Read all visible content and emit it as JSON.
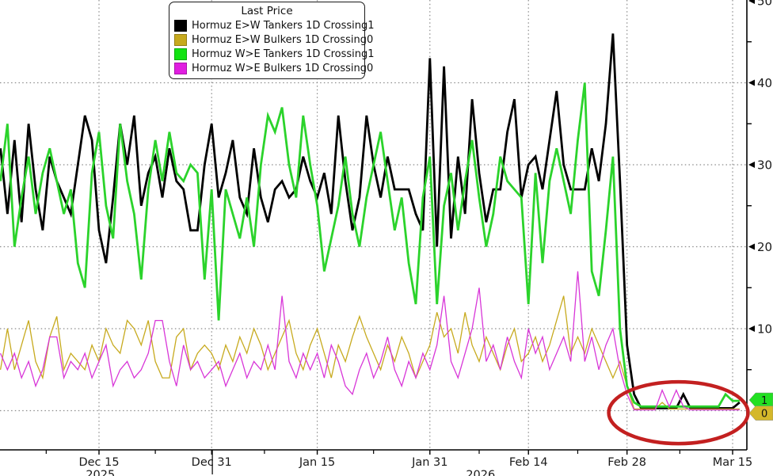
{
  "chart_data": {
    "type": "line",
    "x_start_label": "Dec 1 2025",
    "x_unit": "day",
    "legend_title": "Last Price",
    "ylim": [
      0,
      50
    ],
    "yticks": [
      10,
      20,
      30,
      40,
      50
    ],
    "yticks_minor": [
      5,
      15,
      25,
      35,
      45
    ],
    "grid": "dotted",
    "legend_position": "top-center",
    "xticks": [
      {
        "label": "Dec 15",
        "day": 14
      },
      {
        "label": "Dec 31",
        "day": 30
      },
      {
        "label": "Jan 15",
        "day": 45
      },
      {
        "label": "Jan 31",
        "day": 61
      },
      {
        "label": "Feb 14",
        "day": 75
      },
      {
        "label": "Feb 28",
        "day": 89
      },
      {
        "label": "Mar 15",
        "day": 104
      }
    ],
    "xticks_minor_days": [
      6.5,
      22,
      37.5,
      53,
      68,
      82,
      96.5
    ],
    "year_labels": [
      {
        "label": "2025",
        "day": 14.2
      },
      {
        "label": "2026",
        "day": 68.2
      }
    ],
    "year_divider_day": 30.1,
    "series": [
      {
        "name": "Hormuz E>W Tankers 1D Crossing",
        "last_value": "1",
        "color": "#000000",
        "width": 2.8,
        "values": [
          32,
          24,
          33,
          23,
          35,
          27,
          22,
          31,
          28,
          26,
          24,
          30,
          36,
          33,
          22,
          18,
          26,
          35,
          30,
          36,
          25,
          29,
          31,
          26,
          32,
          28,
          27,
          22,
          22,
          30,
          35,
          26,
          29,
          33,
          26,
          24,
          32,
          26,
          23,
          27,
          28,
          26,
          27,
          31,
          28,
          26,
          29,
          24,
          36,
          28,
          22,
          26,
          36,
          30,
          26,
          31,
          27,
          27,
          27,
          24,
          22,
          43,
          20,
          42,
          21,
          31,
          24,
          38,
          29,
          23,
          27,
          27,
          34,
          38,
          26,
          30,
          31,
          27,
          33,
          39,
          30,
          27,
          27,
          27,
          32,
          28,
          35,
          46,
          28,
          8,
          2,
          0.3,
          0.3,
          0.3,
          0.3,
          0.3,
          0.3,
          2,
          0.3,
          0.3,
          0.3,
          0.3,
          0.3,
          0.3,
          0.3,
          1
        ]
      },
      {
        "name": "Hormuz E>W Bulkers 1D Crossing",
        "last_value": "0",
        "color": "#c7aa1e",
        "width": 1.3,
        "values": [
          5,
          10,
          5,
          8,
          11,
          6,
          4,
          9,
          11.5,
          5,
          7,
          6,
          5,
          8,
          6,
          10,
          8,
          7,
          11,
          10,
          8,
          11,
          6,
          4,
          4,
          9,
          10,
          5,
          7,
          8,
          7,
          5,
          8,
          6,
          9,
          7,
          10,
          8,
          5,
          7,
          9,
          11,
          7,
          5,
          8,
          10,
          7,
          4,
          8,
          6,
          9,
          11.5,
          9,
          7,
          5,
          8,
          6,
          9,
          7,
          4,
          6,
          8,
          12,
          9,
          10,
          7,
          12,
          8,
          6,
          9,
          7,
          5,
          8,
          10,
          6,
          7,
          9,
          6,
          8,
          11,
          14,
          7,
          9,
          7,
          10,
          8,
          6,
          4,
          6,
          3,
          0.2,
          0.2,
          0.2,
          0.2,
          1,
          0.2,
          0.2,
          0.2,
          0.2,
          0.2,
          0.2,
          0.2,
          0.2,
          0.2,
          0.2,
          0.2
        ]
      },
      {
        "name": "Hormuz W>E Tankers 1D Crossing",
        "last_value": "1",
        "color": "#2bd32b",
        "width": 2.8,
        "values": [
          28,
          35,
          20,
          26,
          31,
          24,
          29,
          32,
          28,
          24,
          27,
          18,
          15,
          29,
          34,
          25,
          21,
          35,
          28,
          24,
          16,
          27,
          33,
          28,
          34,
          29,
          28,
          30,
          29,
          16,
          27,
          11,
          27,
          24,
          21,
          26,
          20,
          30,
          36,
          34,
          37,
          30,
          26,
          36,
          30,
          25,
          17,
          21,
          25,
          31,
          24,
          20,
          26,
          30,
          34,
          28,
          22,
          26,
          18,
          13,
          26,
          31,
          13,
          25,
          29,
          22,
          28,
          33,
          26,
          20,
          24,
          31,
          28,
          27,
          26,
          13,
          29,
          18,
          28,
          32,
          28,
          24,
          33,
          40,
          17,
          14,
          22,
          31,
          10,
          3,
          1,
          0.5,
          0.5,
          0.5,
          0.5,
          0.5,
          0.5,
          0.5,
          0.5,
          0.5,
          0.5,
          0.5,
          0.5,
          2,
          1.2,
          1.2
        ]
      },
      {
        "name": "Hormuz W>E Bulkers 1D Crossing",
        "last_value": "0",
        "color": "#d836d8",
        "width": 1.3,
        "values": [
          7,
          5,
          7,
          4,
          6,
          3,
          5,
          9,
          9,
          4,
          6,
          5,
          7,
          4,
          6,
          8,
          3,
          5,
          6,
          4,
          5,
          7,
          11,
          11,
          6,
          3,
          8,
          5,
          6,
          4,
          5,
          6,
          3,
          5,
          7,
          4,
          6,
          5,
          8,
          5,
          14,
          6,
          4,
          7,
          5,
          7,
          4,
          8,
          6,
          3,
          2,
          5,
          7,
          4,
          6,
          9,
          5,
          3,
          6,
          4,
          7,
          5,
          8,
          14,
          6,
          4,
          7,
          10,
          15,
          6,
          8,
          5,
          9,
          6,
          4,
          10,
          7,
          9,
          5,
          7,
          9,
          6,
          17,
          6,
          9,
          5,
          8,
          10,
          5,
          2,
          0.1,
          0.1,
          0.1,
          0.1,
          2.5,
          0.5,
          2.5,
          0.5,
          0.1,
          0.1,
          0.1,
          0.1,
          0.1,
          0.1,
          0.1,
          0.1
        ]
      }
    ],
    "last_price_tags": [
      {
        "text": "1",
        "color": "#22e022",
        "center_value": 1.3
      },
      {
        "text": "0",
        "color": "#d4b82a",
        "center_value": -0.3
      }
    ],
    "annotation_ellipse": {
      "center_day": 96.3,
      "center_value": -0.25,
      "rx_days": 9.9,
      "ry_values": 3.77,
      "color": "#c32020",
      "stroke_width": 4.5
    },
    "colors": {
      "axis": "#000000",
      "grid": "#8c8c8c",
      "tick_label": "#1a1a1a"
    }
  }
}
